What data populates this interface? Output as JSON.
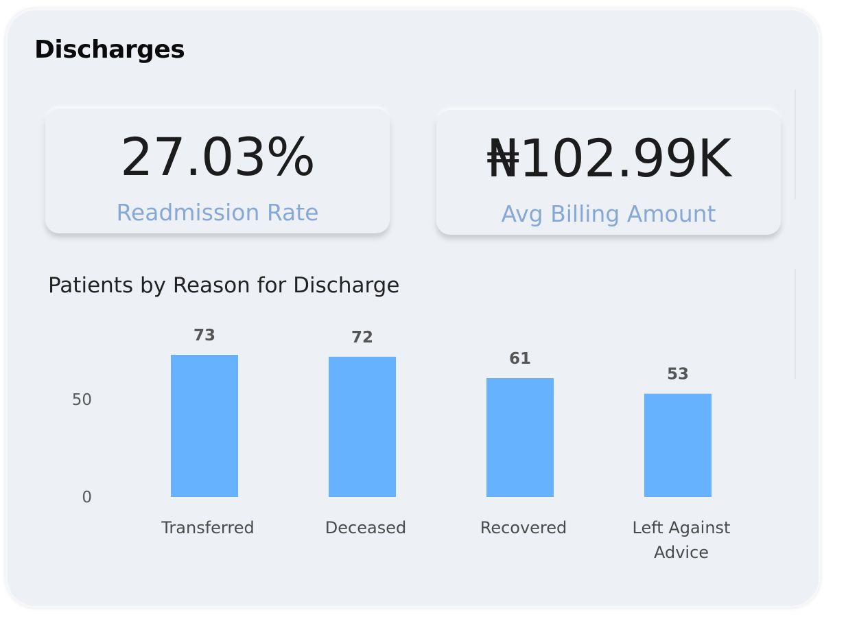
{
  "header": {
    "title": "Discharges"
  },
  "kpis": [
    {
      "value": "27.03%",
      "label": "Readmission Rate"
    },
    {
      "value": "₦102.99K",
      "label": "Avg Billing Amount"
    }
  ],
  "colors": {
    "bar": "#66b2fe",
    "kpi_label": "#86a8d4",
    "panel": "#edf0f5"
  },
  "chart_data": {
    "type": "bar",
    "title": "Patients by Reason for Discharge",
    "categories": [
      "Transferred",
      "Deceased",
      "Recovered",
      "Left Against Advice"
    ],
    "values": [
      73,
      72,
      61,
      53
    ],
    "ylim": [
      0,
      73
    ],
    "yticks": [
      0,
      50
    ],
    "grid": false,
    "legend": "none"
  }
}
